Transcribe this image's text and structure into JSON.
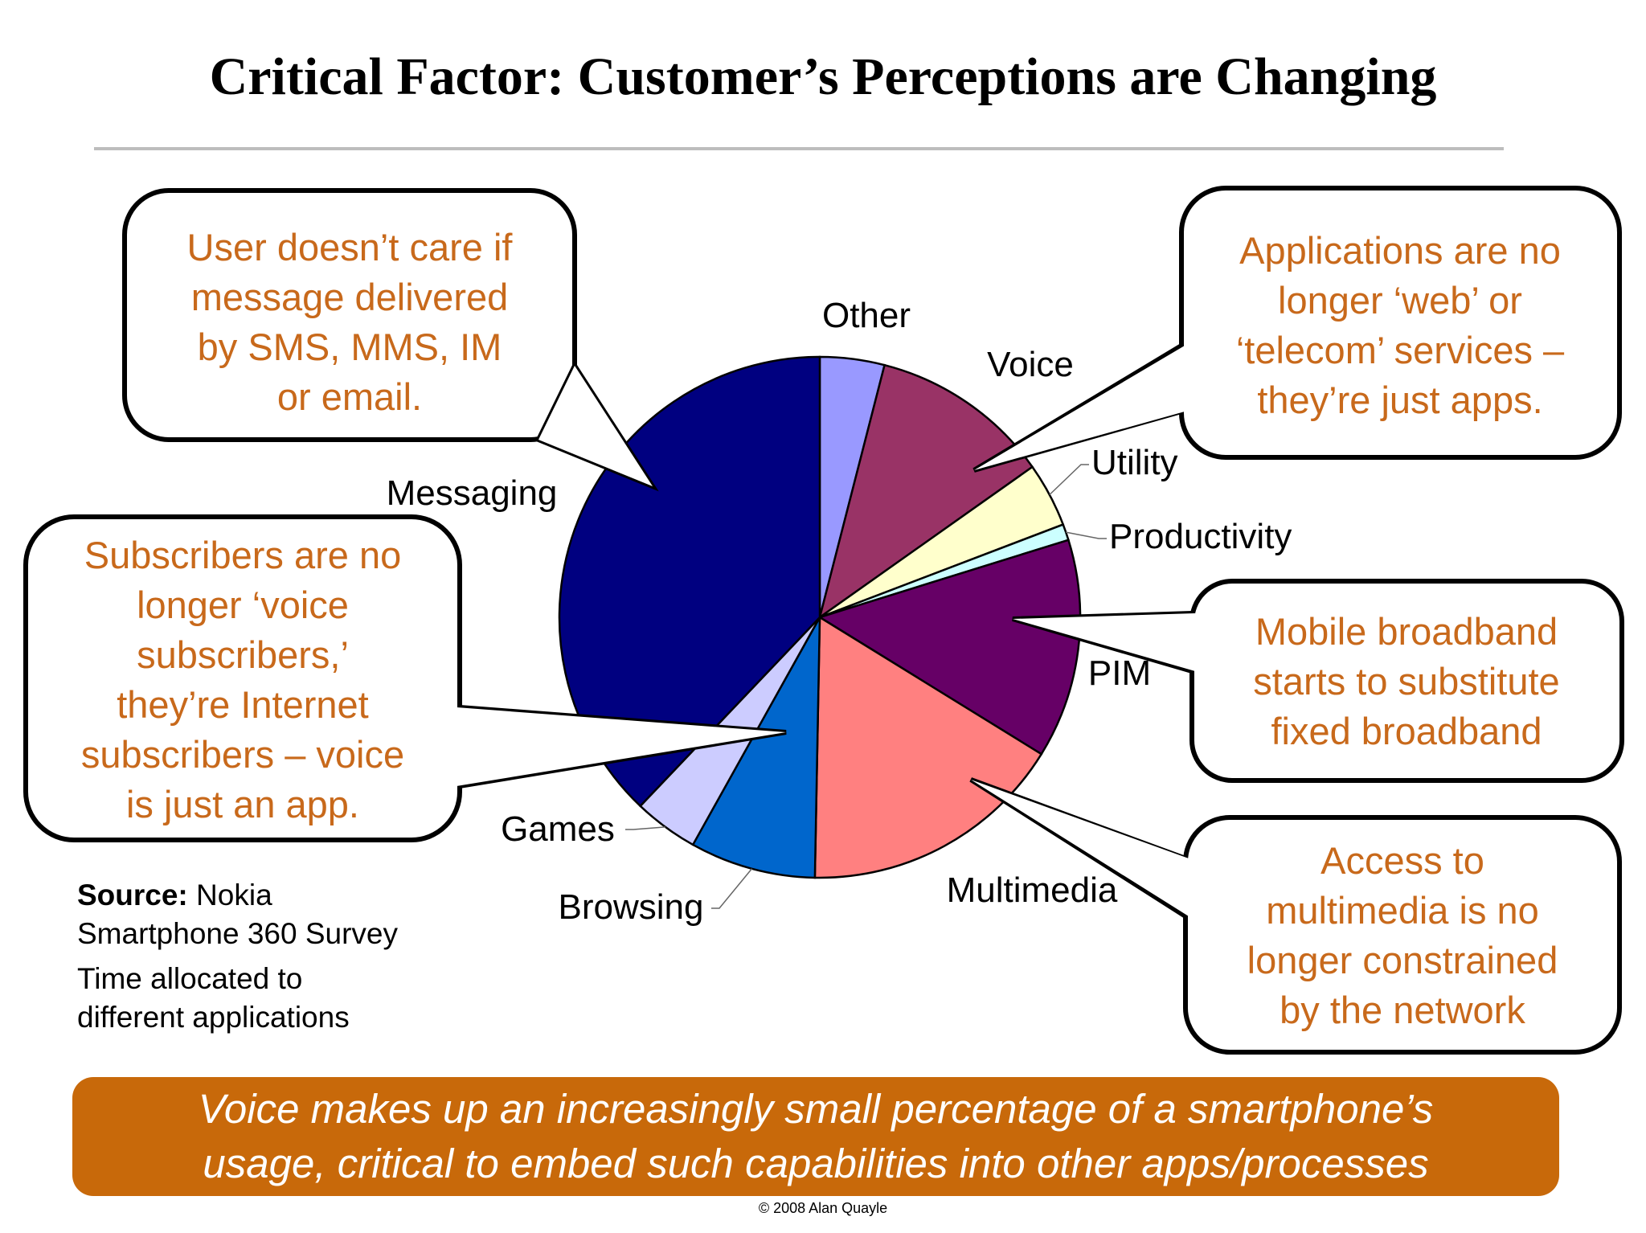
{
  "title": "Critical Factor: Customer’s Perceptions are Changing",
  "chart_data": {
    "type": "pie",
    "title": "",
    "slices": [
      {
        "label": "Other",
        "value": 4.0,
        "color": "#9999ff"
      },
      {
        "label": "Voice",
        "value": 11.2,
        "color": "#993366"
      },
      {
        "label": "Utility",
        "value": 4.0,
        "color": "#ffffcc"
      },
      {
        "label": "Productivity",
        "value": 1.0,
        "color": "#ccffff"
      },
      {
        "label": "PIM",
        "value": 13.6,
        "color": "#660066"
      },
      {
        "label": "Multimedia",
        "value": 16.5,
        "color": "#ff8080"
      },
      {
        "label": "Browsing",
        "value": 7.8,
        "color": "#0066cc"
      },
      {
        "label": "Games",
        "value": 4.0,
        "color": "#ccccff"
      },
      {
        "label": "Messaging",
        "value": 37.9,
        "color": "#000080"
      }
    ]
  },
  "callouts": [
    {
      "lines": [
        "User doesn’t care if",
        "message delivered",
        "by SMS, MMS, IM",
        "or email."
      ]
    },
    {
      "lines": [
        "Applications are no",
        "longer ‘web’ or",
        "‘telecom’ services –",
        "they’re just apps."
      ]
    },
    {
      "lines": [
        "Subscribers are no",
        "longer ‘voice",
        "subscribers,’",
        "they’re Internet",
        "subscribers – voice",
        "is just an app."
      ]
    },
    {
      "lines": [
        "Mobile broadband",
        "starts to substitute",
        "fixed broadband"
      ]
    },
    {
      "lines": [
        "Access to",
        "multimedia is no",
        "longer constrained",
        "by the network"
      ]
    }
  ],
  "source": {
    "label": "Source:",
    "line1": "Nokia",
    "line2": "Smartphone 360 Survey",
    "line3": "Time allocated to",
    "line4": "different applications"
  },
  "banner": {
    "line1": "Voice makes up an increasingly small percentage of a smartphone’s",
    "line2": "usage, critical to embed such capabilities into other apps/processes"
  },
  "copyright": "© 2008 Alan Quayle",
  "colors": {
    "callout_text": "#c8691b",
    "banner": "#c8690a"
  }
}
